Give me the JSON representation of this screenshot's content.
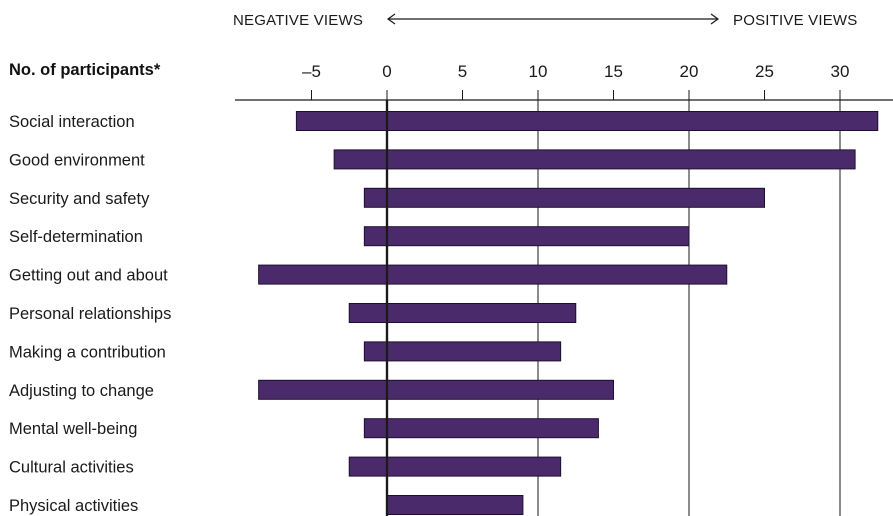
{
  "colors": {
    "bar_fill": "#4b2a6b",
    "bar_stroke": "#1e0f30",
    "axis": "#1a1a1a"
  },
  "chart_data": {
    "type": "bar",
    "orientation": "horizontal",
    "title": "",
    "xlabel_left": "NEGATIVE VIEWS",
    "xlabel_right": "POSITIVE VIEWS",
    "ylabel": "No. of participants*",
    "xlim": [
      -8.5,
      33.5
    ],
    "xticks": [
      -5,
      0,
      5,
      10,
      15,
      20,
      25,
      30
    ],
    "xtick_labels": [
      "–5",
      "0",
      "5",
      "10",
      "15",
      "20",
      "25",
      "30"
    ],
    "gridlines_at": [
      0,
      10,
      20,
      30
    ],
    "categories": [
      "Social interaction",
      "Good environment",
      "Security and safety",
      "Self-determination",
      "Getting out and about",
      "Personal relationships",
      "Making a contribution",
      "Adjusting to change",
      "Mental well-being",
      "Cultural activities",
      "Physical activities"
    ],
    "series": [
      {
        "negative": [
          -6,
          -3.5,
          -1.5,
          -1.5,
          -8.5,
          -2.5,
          -1.5,
          -8.5,
          -1.5,
          -2.5,
          0
        ],
        "positive": [
          32.5,
          31,
          25,
          20,
          22.5,
          12.5,
          11.5,
          15,
          14,
          11.5,
          9
        ]
      }
    ],
    "grid": true,
    "legend": "none"
  }
}
